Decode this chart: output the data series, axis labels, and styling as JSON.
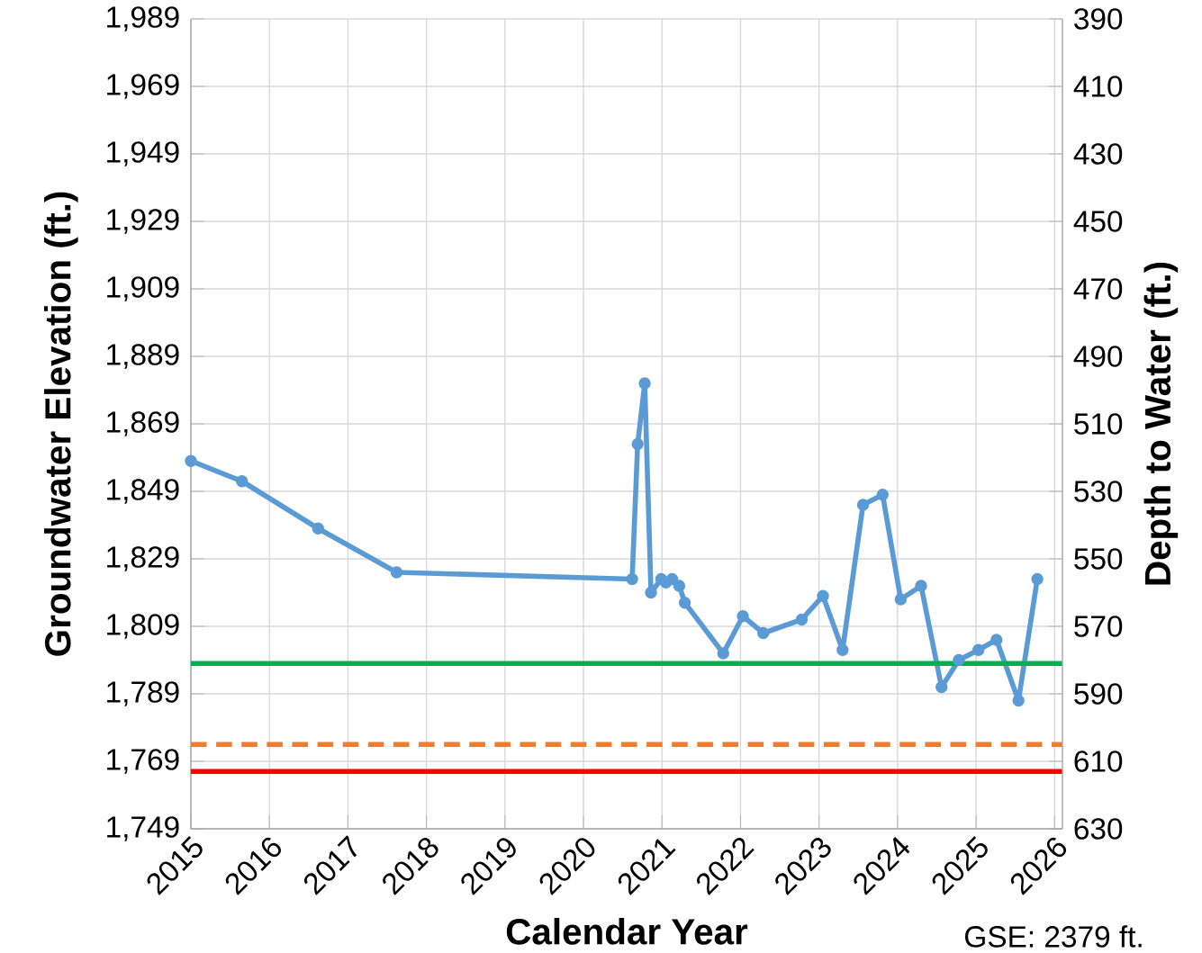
{
  "chart_data": {
    "type": "line",
    "xlabel": "Calendar Year",
    "ylabel": "Groundwater Elevation (ft.)",
    "y2label": "Depth to Water (ft.)",
    "x": [
      2015.0,
      2015.65,
      2016.62,
      2017.62,
      2020.62,
      2020.69,
      2020.78,
      2020.86,
      2020.99,
      2021.05,
      2021.13,
      2021.22,
      2021.29,
      2021.78,
      2022.03,
      2022.29,
      2022.78,
      2023.05,
      2023.3,
      2023.56,
      2023.81,
      2024.04,
      2024.3,
      2024.56,
      2024.78,
      2025.03,
      2025.26,
      2025.54,
      2025.78
    ],
    "series": [
      {
        "color": "#5b9bd5",
        "values": [
          1858,
          1852,
          1838,
          1825,
          1823,
          1863,
          1881,
          1819,
          1823,
          1822,
          1823,
          1821,
          1816,
          1801,
          1812,
          1807,
          1811,
          1818,
          1802,
          1845,
          1848,
          1817,
          1821,
          1791,
          1799,
          1802,
          1805,
          1787,
          1823
        ]
      }
    ],
    "xlim": [
      2015,
      2026.1
    ],
    "xticks": [
      2015,
      2016,
      2017,
      2018,
      2019,
      2020,
      2021,
      2022,
      2023,
      2024,
      2025,
      2026
    ],
    "ylim": [
      1749,
      1989
    ],
    "yticks": [
      {
        "value": 1749,
        "label": "1,749"
      },
      {
        "value": 1769,
        "label": "1,769"
      },
      {
        "value": 1789,
        "label": "1,789"
      },
      {
        "value": 1809,
        "label": "1,809"
      },
      {
        "value": 1829,
        "label": "1,829"
      },
      {
        "value": 1849,
        "label": "1,849"
      },
      {
        "value": 1869,
        "label": "1,869"
      },
      {
        "value": 1889,
        "label": "1,889"
      },
      {
        "value": 1909,
        "label": "1,909"
      },
      {
        "value": 1929,
        "label": "1,929"
      },
      {
        "value": 1949,
        "label": "1,949"
      },
      {
        "value": 1969,
        "label": "1,969"
      },
      {
        "value": 1989,
        "label": "1,989"
      }
    ],
    "y2lim": [
      630,
      390
    ],
    "y2ticks": [
      390,
      410,
      430,
      450,
      470,
      490,
      510,
      530,
      550,
      570,
      590,
      610,
      630
    ],
    "ref_lines": [
      {
        "axis": "y",
        "value": 1798,
        "color": "#00b050",
        "line_style": "solid"
      },
      {
        "axis": "y",
        "value": 1774,
        "color": "#ed7d31",
        "line_style": "dashed"
      },
      {
        "axis": "y",
        "value": 1766,
        "color": "#ff0000",
        "line_style": "solid"
      }
    ],
    "grid": true,
    "marker": "circle",
    "line_style": "solid",
    "annotations": [
      "GSE: 2379 ft."
    ]
  }
}
